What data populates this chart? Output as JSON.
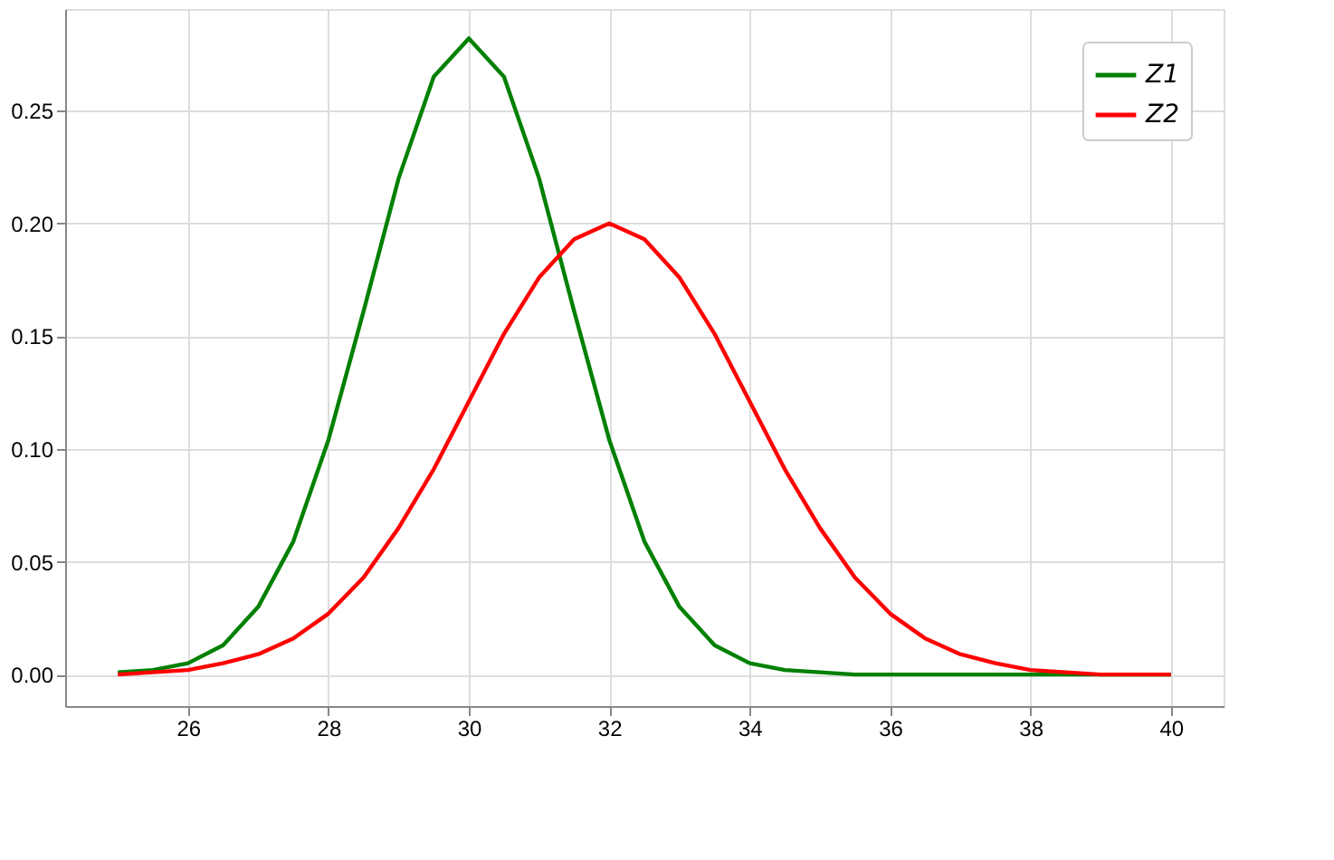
{
  "chart_data": {
    "type": "line",
    "x": [
      25,
      25.5,
      26,
      26.5,
      27,
      27.5,
      28,
      28.5,
      29,
      29.5,
      30,
      30.5,
      31,
      31.5,
      32,
      32.5,
      33,
      33.5,
      34,
      34.5,
      35,
      35.5,
      36,
      36.5,
      37,
      37.5,
      38,
      38.5,
      39,
      39.5,
      40
    ],
    "series": [
      {
        "name": "Z1",
        "color": "#008000",
        "values": [
          0.001,
          0.002,
          0.005,
          0.013,
          0.03,
          0.059,
          0.104,
          0.161,
          0.22,
          0.265,
          0.282,
          0.265,
          0.22,
          0.161,
          0.104,
          0.059,
          0.03,
          0.013,
          0.005,
          0.002,
          0.001,
          0,
          0,
          0,
          0,
          0,
          0,
          0,
          0,
          0,
          0
        ]
      },
      {
        "name": "Z2",
        "color": "#ff0000",
        "values": [
          0,
          0.001,
          0.002,
          0.005,
          0.009,
          0.016,
          0.027,
          0.043,
          0.065,
          0.091,
          0.121,
          0.151,
          0.176,
          0.193,
          0.2,
          0.193,
          0.176,
          0.151,
          0.121,
          0.091,
          0.065,
          0.043,
          0.027,
          0.016,
          0.009,
          0.005,
          0.002,
          0.001,
          0,
          0,
          0
        ]
      }
    ],
    "xlim": [
      24.25,
      40.75
    ],
    "xticks": [
      26,
      28,
      30,
      32,
      34,
      36,
      38,
      40
    ],
    "ylim": [
      -0.014,
      0.295
    ],
    "yticks": [
      {
        "value": 0,
        "label": "0.00"
      },
      {
        "value": 0.05,
        "label": "0.05"
      },
      {
        "value": 0.1,
        "label": "0.10"
      },
      {
        "value": 0.15,
        "label": "0.15"
      },
      {
        "value": 0.2,
        "label": "0.20"
      },
      {
        "value": 0.25,
        "label": "0.25"
      }
    ],
    "grid": true,
    "legend": "top right",
    "marker": "none",
    "line_style": "solid"
  }
}
